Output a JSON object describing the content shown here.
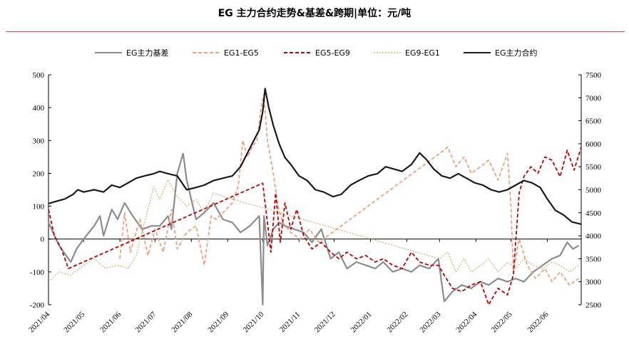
{
  "chart_data": {
    "type": "line",
    "title": "EG 主力合约走势&基差&跨期|单位：元/吨",
    "y_left": {
      "lim": [
        -200,
        500
      ],
      "ticks": [
        -200,
        -100,
        0,
        100,
        200,
        300,
        400,
        500
      ]
    },
    "y_right": {
      "lim": [
        2500,
        7500
      ],
      "ticks": [
        2500,
        3000,
        3500,
        4000,
        4500,
        5000,
        5500,
        6000,
        6500,
        7000,
        7500
      ]
    },
    "x_ticks": [
      "2021/04",
      "2021/05",
      "2021/06",
      "2021/07",
      "2021/08",
      "2021/09",
      "2021/10",
      "2021/11",
      "2021/12",
      "2022/01",
      "2022/02",
      "2022/03",
      "2022/04",
      "2022/05",
      "2022/06"
    ],
    "x_range": [
      "2021-04-01",
      "2022-06-30"
    ],
    "grid": false,
    "legend_position": "top",
    "series": [
      {
        "name": "EG主力基差",
        "axis": "left",
        "color": "#8c8c8c",
        "style": "solid",
        "points": [
          [
            "2021-04-01",
            50
          ],
          [
            "2021-04-10",
            -20
          ],
          [
            "2021-04-20",
            -70
          ],
          [
            "2021-04-25",
            -30
          ],
          [
            "2021-05-01",
            0
          ],
          [
            "2021-05-10",
            40
          ],
          [
            "2021-05-15",
            70
          ],
          [
            "2021-05-18",
            10
          ],
          [
            "2021-05-25",
            90
          ],
          [
            "2021-05-30",
            60
          ],
          [
            "2021-06-05",
            110
          ],
          [
            "2021-06-12",
            70
          ],
          [
            "2021-06-20",
            30
          ],
          [
            "2021-06-28",
            40
          ],
          [
            "2021-07-05",
            40
          ],
          [
            "2021-07-12",
            70
          ],
          [
            "2021-07-15",
            30
          ],
          [
            "2021-07-20",
            200
          ],
          [
            "2021-07-25",
            260
          ],
          [
            "2021-07-28",
            180
          ],
          [
            "2021-08-05",
            60
          ],
          [
            "2021-08-12",
            80
          ],
          [
            "2021-08-20",
            110
          ],
          [
            "2021-08-28",
            60
          ],
          [
            "2021-09-05",
            50
          ],
          [
            "2021-09-12",
            20
          ],
          [
            "2021-09-20",
            40
          ],
          [
            "2021-09-28",
            70
          ],
          [
            "2021-10-01",
            -200
          ],
          [
            "2021-10-02",
            70
          ],
          [
            "2021-10-05",
            -20
          ],
          [
            "2021-10-10",
            30
          ],
          [
            "2021-10-15",
            50
          ],
          [
            "2021-10-20",
            40
          ],
          [
            "2021-10-28",
            30
          ],
          [
            "2021-11-05",
            20
          ],
          [
            "2021-11-12",
            -10
          ],
          [
            "2021-11-20",
            30
          ],
          [
            "2021-11-28",
            -60
          ],
          [
            "2021-12-05",
            -40
          ],
          [
            "2021-12-12",
            -90
          ],
          [
            "2021-12-20",
            -70
          ],
          [
            "2021-12-28",
            -80
          ],
          [
            "2022-01-05",
            -90
          ],
          [
            "2022-01-12",
            -70
          ],
          [
            "2022-01-20",
            -100
          ],
          [
            "2022-01-28",
            -90
          ],
          [
            "2022-02-05",
            -100
          ],
          [
            "2022-02-12",
            -80
          ],
          [
            "2022-02-20",
            -90
          ],
          [
            "2022-02-28",
            -60
          ],
          [
            "2022-03-05",
            -190
          ],
          [
            "2022-03-12",
            -160
          ],
          [
            "2022-03-20",
            -140
          ],
          [
            "2022-03-28",
            -150
          ],
          [
            "2022-04-05",
            -130
          ],
          [
            "2022-04-12",
            -140
          ],
          [
            "2022-04-20",
            -120
          ],
          [
            "2022-04-28",
            -130
          ],
          [
            "2022-05-05",
            -120
          ],
          [
            "2022-05-12",
            -130
          ],
          [
            "2022-05-20",
            -100
          ],
          [
            "2022-05-28",
            -80
          ],
          [
            "2022-06-05",
            -60
          ],
          [
            "2022-06-12",
            -50
          ],
          [
            "2022-06-18",
            -10
          ],
          [
            "2022-06-23",
            -30
          ],
          [
            "2022-06-28",
            -20
          ]
        ]
      },
      {
        "name": "EG1-EG5",
        "axis": "left",
        "color": "#f0a07c",
        "style": "dashed",
        "points": [
          [
            "2021-06-01",
            -60
          ],
          [
            "2021-06-05",
            80
          ],
          [
            "2021-06-10",
            -40
          ],
          [
            "2021-06-18",
            60
          ],
          [
            "2021-06-25",
            -50
          ],
          [
            "2021-07-01",
            30
          ],
          [
            "2021-07-08",
            -40
          ],
          [
            "2021-07-15",
            90
          ],
          [
            "2021-07-20",
            -30
          ],
          [
            "2021-07-28",
            20
          ],
          [
            "2021-08-05",
            40
          ],
          [
            "2021-08-12",
            -80
          ],
          [
            "2021-08-18",
            70
          ],
          [
            "2021-08-22",
            60
          ],
          [
            "2021-08-28",
            80
          ],
          [
            "2021-09-05",
            110
          ],
          [
            "2021-09-10",
            160
          ],
          [
            "2021-09-14",
            300
          ],
          [
            "2021-09-18",
            250
          ],
          [
            "2021-09-22",
            280
          ],
          [
            "2021-09-26",
            300
          ],
          [
            "2021-09-30",
            410
          ],
          [
            "2021-10-02",
            440
          ],
          [
            "2021-10-05",
            300
          ],
          [
            "2021-10-10",
            200
          ],
          [
            "2021-10-14",
            100
          ],
          [
            "2021-10-18",
            50
          ],
          [
            "2021-10-25",
            20
          ],
          [
            "2021-11-02",
            0
          ],
          [
            "2021-11-10",
            30
          ],
          [
            "2021-11-18",
            -10
          ],
          [
            "2022-03-01",
            260
          ],
          [
            "2022-03-08",
            280
          ],
          [
            "2022-03-15",
            220
          ],
          [
            "2022-03-22",
            250
          ],
          [
            "2022-03-28",
            200
          ],
          [
            "2022-04-05",
            220
          ],
          [
            "2022-04-12",
            240
          ],
          [
            "2022-04-20",
            180
          ],
          [
            "2022-04-28",
            260
          ],
          [
            "2022-05-01",
            100
          ],
          [
            "2022-05-03",
            -100
          ],
          [
            "2022-05-08",
            0
          ],
          [
            "2022-05-15",
            -80
          ],
          [
            "2022-05-22",
            -120
          ],
          [
            "2022-05-30",
            -90
          ],
          [
            "2022-06-05",
            -130
          ],
          [
            "2022-06-12",
            -100
          ],
          [
            "2022-06-20",
            -140
          ],
          [
            "2022-06-28",
            -120
          ]
        ]
      },
      {
        "name": "EG5-EG9",
        "axis": "left",
        "color": "#c00000",
        "style": "dashed",
        "points": [
          [
            "2021-04-01",
            90
          ],
          [
            "2021-04-06",
            10
          ],
          [
            "2021-04-12",
            -30
          ],
          [
            "2021-04-18",
            -90
          ],
          [
            "2021-10-01",
            170
          ],
          [
            "2021-10-05",
            50
          ],
          [
            "2021-10-08",
            -40
          ],
          [
            "2021-10-12",
            140
          ],
          [
            "2021-10-16",
            -10
          ],
          [
            "2021-10-20",
            110
          ],
          [
            "2021-10-25",
            30
          ],
          [
            "2021-10-30",
            90
          ],
          [
            "2021-11-05",
            10
          ],
          [
            "2021-11-12",
            -30
          ],
          [
            "2021-11-20",
            -10
          ],
          [
            "2021-11-28",
            -40
          ],
          [
            "2021-12-05",
            -60
          ],
          [
            "2021-12-12",
            -40
          ],
          [
            "2021-12-20",
            -60
          ],
          [
            "2021-12-28",
            -50
          ],
          [
            "2022-01-05",
            -70
          ],
          [
            "2022-01-12",
            -60
          ],
          [
            "2022-01-20",
            -80
          ],
          [
            "2022-01-28",
            -90
          ],
          [
            "2022-02-05",
            -40
          ],
          [
            "2022-02-12",
            -70
          ],
          [
            "2022-02-20",
            -80
          ],
          [
            "2022-02-28",
            -80
          ],
          [
            "2022-03-05",
            -110
          ],
          [
            "2022-03-12",
            -150
          ],
          [
            "2022-03-20",
            -160
          ],
          [
            "2022-03-28",
            -140
          ],
          [
            "2022-04-05",
            -130
          ],
          [
            "2022-04-12",
            -200
          ],
          [
            "2022-04-20",
            -150
          ],
          [
            "2022-04-28",
            -170
          ],
          [
            "2022-05-03",
            -110
          ],
          [
            "2022-05-08",
            140
          ],
          [
            "2022-05-12",
            190
          ],
          [
            "2022-05-18",
            220
          ],
          [
            "2022-05-24",
            200
          ],
          [
            "2022-05-30",
            250
          ],
          [
            "2022-06-05",
            240
          ],
          [
            "2022-06-12",
            190
          ],
          [
            "2022-06-18",
            270
          ],
          [
            "2022-06-24",
            210
          ],
          [
            "2022-06-30",
            280
          ]
        ]
      },
      {
        "name": "EG9-EG1",
        "axis": "left",
        "color": "#d4a460",
        "style": "dotted",
        "points": [
          [
            "2021-04-01",
            -130
          ],
          [
            "2021-04-10",
            -100
          ],
          [
            "2021-04-20",
            -110
          ],
          [
            "2021-05-01",
            -80
          ],
          [
            "2021-05-10",
            -60
          ],
          [
            "2021-05-20",
            -90
          ],
          [
            "2021-05-30",
            -80
          ],
          [
            "2021-06-08",
            -90
          ],
          [
            "2021-06-15",
            -50
          ],
          [
            "2021-06-22",
            50
          ],
          [
            "2021-06-30",
            160
          ],
          [
            "2021-07-05",
            120
          ],
          [
            "2021-07-12",
            180
          ],
          [
            "2021-07-20",
            130
          ],
          [
            "2021-07-28",
            100
          ],
          [
            "2021-08-05",
            120
          ],
          [
            "2021-08-12",
            80
          ],
          [
            "2021-08-20",
            140
          ],
          [
            "2021-08-28",
            130
          ],
          [
            "2022-03-01",
            -60
          ],
          [
            "2022-03-08",
            -40
          ],
          [
            "2022-03-15",
            -100
          ],
          [
            "2022-03-22",
            -60
          ],
          [
            "2022-03-28",
            -100
          ],
          [
            "2022-04-05",
            -80
          ],
          [
            "2022-04-12",
            -60
          ],
          [
            "2022-04-20",
            -100
          ],
          [
            "2022-04-28",
            -70
          ],
          [
            "2022-05-05",
            -90
          ],
          [
            "2022-05-12",
            -60
          ],
          [
            "2022-05-20",
            -80
          ],
          [
            "2022-05-28",
            -90
          ],
          [
            "2022-06-05",
            -70
          ],
          [
            "2022-06-12",
            -80
          ],
          [
            "2022-06-20",
            -100
          ],
          [
            "2022-06-28",
            -80
          ]
        ]
      },
      {
        "name": "EG主力合约",
        "axis": "right",
        "color": "#1a1a1a",
        "style": "solid",
        "points": [
          [
            "2021-04-01",
            4700
          ],
          [
            "2021-04-08",
            4750
          ],
          [
            "2021-04-15",
            4800
          ],
          [
            "2021-04-22",
            4900
          ],
          [
            "2021-04-26",
            5000
          ],
          [
            "2021-05-01",
            4950
          ],
          [
            "2021-05-10",
            5000
          ],
          [
            "2021-05-18",
            4950
          ],
          [
            "2021-05-25",
            5100
          ],
          [
            "2021-06-01",
            5050
          ],
          [
            "2021-06-08",
            5150
          ],
          [
            "2021-06-15",
            5250
          ],
          [
            "2021-06-22",
            5300
          ],
          [
            "2021-06-30",
            5350
          ],
          [
            "2021-07-05",
            5400
          ],
          [
            "2021-07-12",
            5350
          ],
          [
            "2021-07-20",
            5300
          ],
          [
            "2021-07-28",
            5000
          ],
          [
            "2021-08-05",
            5050
          ],
          [
            "2021-08-12",
            5100
          ],
          [
            "2021-08-20",
            5200
          ],
          [
            "2021-08-28",
            5250
          ],
          [
            "2021-09-05",
            5300
          ],
          [
            "2021-09-12",
            5500
          ],
          [
            "2021-09-18",
            5800
          ],
          [
            "2021-09-24",
            6100
          ],
          [
            "2021-09-28",
            6300
          ],
          [
            "2021-10-01",
            6700
          ],
          [
            "2021-10-03",
            7200
          ],
          [
            "2021-10-06",
            6800
          ],
          [
            "2021-10-10",
            6400
          ],
          [
            "2021-10-15",
            6000
          ],
          [
            "2021-10-20",
            5700
          ],
          [
            "2021-10-25",
            5550
          ],
          [
            "2021-11-01",
            5300
          ],
          [
            "2021-11-08",
            5200
          ],
          [
            "2021-11-15",
            5000
          ],
          [
            "2021-11-22",
            4950
          ],
          [
            "2021-11-30",
            4850
          ],
          [
            "2021-12-07",
            4900
          ],
          [
            "2021-12-15",
            5100
          ],
          [
            "2021-12-22",
            5200
          ],
          [
            "2021-12-30",
            5300
          ],
          [
            "2022-01-07",
            5350
          ],
          [
            "2022-01-14",
            5500
          ],
          [
            "2022-01-21",
            5450
          ],
          [
            "2022-01-28",
            5400
          ],
          [
            "2022-02-05",
            5550
          ],
          [
            "2022-02-12",
            5800
          ],
          [
            "2022-02-18",
            5650
          ],
          [
            "2022-02-24",
            5450
          ],
          [
            "2022-03-03",
            5300
          ],
          [
            "2022-03-10",
            5250
          ],
          [
            "2022-03-17",
            5350
          ],
          [
            "2022-03-24",
            5250
          ],
          [
            "2022-03-31",
            5150
          ],
          [
            "2022-04-07",
            5100
          ],
          [
            "2022-04-14",
            5000
          ],
          [
            "2022-04-21",
            4950
          ],
          [
            "2022-04-28",
            5000
          ],
          [
            "2022-05-05",
            5100
          ],
          [
            "2022-05-12",
            5200
          ],
          [
            "2022-05-19",
            5150
          ],
          [
            "2022-05-26",
            5050
          ],
          [
            "2022-06-01",
            4800
          ],
          [
            "2022-06-08",
            4550
          ],
          [
            "2022-06-15",
            4450
          ],
          [
            "2022-06-22",
            4300
          ],
          [
            "2022-06-30",
            4250
          ]
        ]
      }
    ]
  }
}
